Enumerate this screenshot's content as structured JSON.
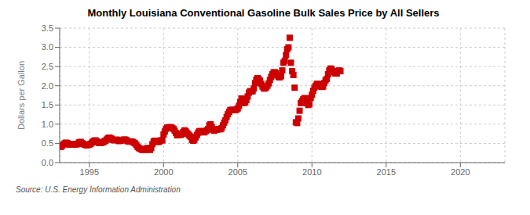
{
  "chart_data": {
    "type": "scatter",
    "title": "Monthly Louisiana Conventional Gasoline Bulk Sales Price by All Sellers",
    "y_label": "Dollars per Gallon",
    "annotations": [
      "Source: U.S. Energy Information Administration"
    ],
    "color": "#CC0000",
    "marker": "square",
    "grid": true,
    "xlim": [
      1993.0,
      2023.0
    ],
    "ylim": [
      0.0,
      3.5
    ],
    "xticks": [
      1995,
      2000,
      2005,
      2010,
      2015,
      2020
    ],
    "yticks": [
      {
        "value": 0.0,
        "label": "0.0"
      },
      0.5,
      {
        "value": 1.0,
        "label": "1.0"
      },
      1.5,
      {
        "value": 2.0,
        "label": "2.0"
      },
      2.5,
      {
        "value": 3.0,
        "label": "3.0"
      },
      3.5
    ],
    "x": [
      1993.083,
      1993.167,
      1993.25,
      1993.333,
      1993.417,
      1993.5,
      1993.583,
      1993.667,
      1993.75,
      1993.833,
      1993.917,
      1994.0,
      1994.083,
      1994.167,
      1994.25,
      1994.333,
      1994.417,
      1994.5,
      1994.583,
      1994.667,
      1994.75,
      1994.833,
      1994.917,
      1995.0,
      1995.083,
      1995.167,
      1995.25,
      1995.333,
      1995.417,
      1995.5,
      1995.583,
      1995.667,
      1995.75,
      1995.833,
      1995.917,
      1996.0,
      1996.083,
      1996.167,
      1996.25,
      1996.333,
      1996.417,
      1996.5,
      1996.583,
      1996.667,
      1996.75,
      1996.833,
      1996.917,
      1997.0,
      1997.083,
      1997.167,
      1997.25,
      1997.333,
      1997.417,
      1997.5,
      1997.583,
      1997.667,
      1997.75,
      1997.833,
      1997.917,
      1998.0,
      1998.083,
      1998.167,
      1998.25,
      1998.333,
      1998.417,
      1998.5,
      1998.583,
      1998.667,
      1998.75,
      1998.833,
      1998.917,
      1999.0,
      1999.083,
      1999.167,
      1999.25,
      1999.333,
      1999.417,
      1999.5,
      1999.583,
      1999.667,
      1999.75,
      1999.833,
      1999.917,
      2000.0,
      2000.083,
      2000.167,
      2000.25,
      2000.333,
      2000.417,
      2000.5,
      2000.583,
      2000.667,
      2000.75,
      2000.833,
      2000.917,
      2001.0,
      2001.083,
      2001.167,
      2001.25,
      2001.333,
      2001.417,
      2001.5,
      2001.583,
      2001.667,
      2001.75,
      2001.833,
      2001.917,
      2002.0,
      2002.083,
      2002.167,
      2002.25,
      2002.333,
      2002.417,
      2002.5,
      2002.583,
      2002.667,
      2002.75,
      2002.833,
      2002.917,
      2003.0,
      2003.083,
      2003.167,
      2003.25,
      2003.333,
      2003.417,
      2003.5,
      2003.583,
      2003.667,
      2003.75,
      2003.833,
      2003.917,
      2004.0,
      2004.083,
      2004.167,
      2004.25,
      2004.333,
      2004.417,
      2004.5,
      2004.583,
      2004.667,
      2004.75,
      2004.833,
      2004.917,
      2005.0,
      2005.083,
      2005.167,
      2005.25,
      2005.333,
      2005.417,
      2005.5,
      2005.583,
      2005.667,
      2005.75,
      2005.833,
      2005.917,
      2006.0,
      2006.083,
      2006.167,
      2006.25,
      2006.333,
      2006.417,
      2006.5,
      2006.583,
      2006.667,
      2006.75,
      2006.833,
      2006.917,
      2007.0,
      2007.083,
      2007.167,
      2007.25,
      2007.333,
      2007.417,
      2007.5,
      2007.583,
      2007.667,
      2007.75,
      2007.833,
      2007.917,
      2008.0,
      2008.083,
      2008.167,
      2008.25,
      2008.333,
      2008.417,
      2008.5,
      2008.583,
      2008.667,
      2008.75,
      2008.833,
      2008.917,
      2009.0,
      2009.083,
      2009.167,
      2009.25,
      2009.333,
      2009.417,
      2009.5,
      2009.583,
      2009.667,
      2009.75,
      2009.833,
      2009.917,
      2010.0,
      2010.083,
      2010.167,
      2010.25,
      2010.333,
      2010.417,
      2010.5,
      2010.583,
      2010.667,
      2010.75,
      2010.833,
      2010.917,
      2011.0,
      2011.083,
      2011.167,
      2011.25,
      2011.333,
      2011.417,
      2011.5,
      2011.583,
      2011.667,
      2011.75,
      2011.833,
      2011.917
    ],
    "values": [
      0.41,
      0.44,
      0.47,
      0.5,
      0.52,
      0.51,
      0.49,
      0.47,
      0.47,
      0.47,
      0.48,
      0.48,
      0.47,
      0.48,
      0.5,
      0.53,
      0.54,
      0.51,
      0.49,
      0.47,
      0.46,
      0.45,
      0.46,
      0.47,
      0.49,
      0.52,
      0.55,
      0.57,
      0.58,
      0.55,
      0.53,
      0.51,
      0.51,
      0.52,
      0.53,
      0.55,
      0.57,
      0.6,
      0.63,
      0.65,
      0.64,
      0.62,
      0.59,
      0.58,
      0.59,
      0.6,
      0.58,
      0.56,
      0.57,
      0.58,
      0.59,
      0.6,
      0.6,
      0.58,
      0.56,
      0.55,
      0.55,
      0.55,
      0.54,
      0.52,
      0.5,
      0.46,
      0.41,
      0.38,
      0.36,
      0.35,
      0.33,
      0.33,
      0.34,
      0.36,
      0.38,
      0.35,
      0.33,
      0.38,
      0.48,
      0.55,
      0.57,
      0.55,
      0.54,
      0.54,
      0.56,
      0.58,
      0.58,
      0.73,
      0.81,
      0.88,
      0.91,
      0.92,
      0.92,
      0.92,
      0.9,
      0.88,
      0.83,
      0.77,
      0.71,
      0.75,
      0.74,
      0.72,
      0.75,
      0.8,
      0.84,
      0.81,
      0.77,
      0.74,
      0.7,
      0.67,
      0.59,
      0.57,
      0.6,
      0.66,
      0.72,
      0.78,
      0.82,
      0.82,
      0.8,
      0.79,
      0.79,
      0.82,
      0.84,
      0.87,
      0.97,
      1.0,
      0.93,
      0.86,
      0.83,
      0.85,
      0.86,
      0.87,
      0.87,
      0.87,
      0.9,
      0.97,
      1.04,
      1.1,
      1.19,
      1.26,
      1.32,
      1.37,
      1.37,
      1.37,
      1.37,
      1.37,
      1.38,
      1.41,
      1.48,
      1.58,
      1.67,
      1.65,
      1.55,
      1.57,
      1.63,
      1.72,
      1.82,
      1.86,
      1.85,
      1.86,
      1.93,
      2.07,
      2.16,
      2.2,
      2.17,
      2.13,
      2.05,
      1.98,
      1.93,
      1.93,
      1.96,
      2.0,
      2.06,
      2.15,
      2.23,
      2.3,
      2.35,
      2.35,
      2.33,
      2.27,
      2.23,
      2.22,
      2.25,
      2.4,
      2.6,
      2.65,
      2.8,
      2.95,
      3.0,
      3.25,
      2.6,
      2.38,
      2.28,
      1.95,
      1.05,
      1.03,
      1.15,
      1.35,
      1.55,
      1.6,
      1.65,
      1.68,
      1.6,
      1.55,
      1.5,
      1.52,
      1.68,
      1.77,
      1.87,
      1.95,
      2.0,
      2.05,
      2.05,
      2.02,
      1.98,
      1.97,
      1.98,
      2.07,
      2.14,
      2.18,
      2.3,
      2.4,
      2.45,
      2.43,
      2.38,
      2.35,
      2.32,
      2.32,
      2.38,
      2.4,
      2.38
    ]
  }
}
